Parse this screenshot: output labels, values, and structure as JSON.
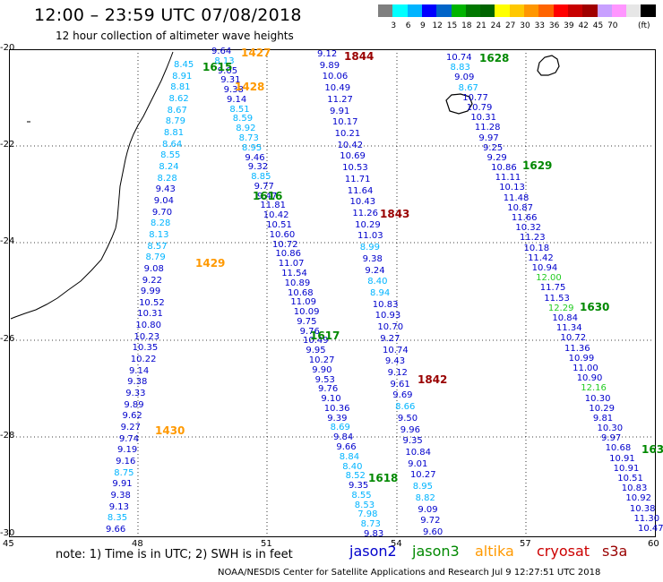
{
  "title": "12:00 – 23:59 UTC 07/08/2018",
  "subtitle": "12 hour collection of altimeter wave heights",
  "colorbar": {
    "colors": [
      "#7f7f7f",
      "#00ffff",
      "#00b4ff",
      "#0000ff",
      "#0064c8",
      "#00b400",
      "#007800",
      "#006400",
      "#ffff00",
      "#ffc800",
      "#ff9600",
      "#ff6400",
      "#ff0000",
      "#c80000",
      "#a00000",
      "#c8a0ff",
      "#ff96ff",
      "#e6e6e6",
      "#000000"
    ],
    "labels": [
      "3",
      "6",
      "9",
      "12",
      "15",
      "18",
      "21",
      "24",
      "27",
      "30",
      "33",
      "36",
      "39",
      "42",
      "45",
      "70"
    ],
    "unit": "(ft)"
  },
  "axes": {
    "lat_labels": [
      "-20",
      "-22",
      "-24",
      "-26",
      "-28",
      "-30"
    ],
    "lon_labels": [
      "45",
      "48",
      "51",
      "54",
      "57",
      "60"
    ]
  },
  "legend": {
    "jason2": {
      "label": "jason2",
      "color": "#0000cc"
    },
    "jason3": {
      "label": "jason3",
      "color": "#008800"
    },
    "altika": {
      "label": "altika",
      "color": "#ff9900"
    },
    "cryosat": {
      "label": "cryosat",
      "color": "#cc0000"
    },
    "s3a": {
      "label": "s3a",
      "color": "#990000"
    }
  },
  "note": "note:  1) Time is in UTC;  2) SWH is in feet",
  "footer": "NOAA/NESDIS Center for Satellite Applications and Research    Jul  9  12:27:51  UTC  2018",
  "passes": [
    {
      "t": "1427",
      "c": "#ff9900"
    },
    {
      "t": "1428",
      "c": "#ff9900"
    },
    {
      "t": "1429",
      "c": "#ff9900"
    },
    {
      "t": "1430",
      "c": "#ff9900"
    },
    {
      "t": "1615",
      "c": "#008800"
    },
    {
      "t": "1616",
      "c": "#008800"
    },
    {
      "t": "1617",
      "c": "#008800"
    },
    {
      "t": "1618",
      "c": "#008800"
    },
    {
      "t": "1628",
      "c": "#008800"
    },
    {
      "t": "1629",
      "c": "#008800"
    },
    {
      "t": "1630",
      "c": "#008800"
    },
    {
      "t": "163",
      "c": "#008800"
    },
    {
      "t": "1842",
      "c": "#990000"
    },
    {
      "t": "1843",
      "c": "#990000"
    },
    {
      "t": "1844",
      "c": "#990000"
    }
  ],
  "tracks": {
    "altika": [
      "8.45",
      "8.91",
      "8.81",
      "8.62",
      "8.67",
      "8.79",
      "8.81",
      "8.64",
      "8.55",
      "8.24",
      "8.28",
      "9.43",
      "9.04",
      "9.70",
      "8.28",
      "8.13",
      "8.57",
      "8.79",
      "9.08",
      "9.22",
      "9.99",
      "10.52",
      "10.31",
      "10.80",
      "10.23",
      "10.35",
      "10.22",
      "9.14",
      "9.38",
      "9.33",
      "9.89",
      "9.62",
      "9.27",
      "9.74",
      "9.19",
      "9.16",
      "8.75",
      "9.91",
      "9.38",
      "9.13",
      "8.35",
      "9.66"
    ],
    "jason3a": [
      "9.64",
      "8.13",
      "9.05",
      "9.31",
      "9.38",
      "9.14",
      "8.51",
      "8.59",
      "8.92",
      "8.73",
      "8.95",
      "9.46",
      "9.32",
      "8.85",
      "9.77",
      "9.47",
      "11.81",
      "10.42",
      "10.51",
      "10.60",
      "10.72",
      "10.86",
      "11.07",
      "11.54",
      "10.89",
      "10.68",
      "11.09",
      "10.09",
      "9.75",
      "9.76",
      "10.49",
      "9.95",
      "10.27",
      "9.90",
      "9.53",
      "9.76",
      "9.10",
      "10.36",
      "9.39",
      "8.69",
      "9.84",
      "9.66",
      "8.84",
      "8.40",
      "8.52",
      "9.35",
      "8.55",
      "8.53",
      "7.98",
      "8.73",
      "9.83"
    ],
    "s3a": [
      "9.12",
      "9.89",
      "10.06",
      "10.49",
      "11.27",
      "9.91",
      "10.17",
      "10.21",
      "10.42",
      "10.69",
      "10.53",
      "11.71",
      "11.64",
      "10.43",
      "11.26",
      "10.29",
      "11.03",
      "8.99",
      "9.38",
      "9.24",
      "8.40",
      "8.94",
      "10.83",
      "10.93",
      "10.70",
      "9.27",
      "10.74",
      "9.43",
      "9.12",
      "9.61",
      "9.69",
      "8.66",
      "9.50",
      "9.96",
      "9.35",
      "10.84",
      "9.01",
      "10.27",
      "8.95",
      "8.82",
      "9.09",
      "9.72",
      "9.60"
    ],
    "jason3b": [
      "10.74",
      "8.83",
      "9.09",
      "8.67",
      "10.77",
      "10.79",
      "10.31",
      "11.28",
      "9.97",
      "9.25",
      "9.29",
      "10.86",
      "11.11",
      "10.13",
      "11.48",
      "10.87",
      "11.66",
      "10.32",
      "11.23",
      "10.18",
      "11.42",
      "10.94",
      "12.00",
      "11.75",
      "11.53",
      "12.29",
      "10.84",
      "11.34",
      "10.72",
      "11.36",
      "10.99",
      "11.00",
      "10.90",
      "12.16",
      "10.30",
      "10.29",
      "9.81",
      "10.30",
      "9.97",
      "10.68",
      "10.91",
      "10.91",
      "10.51",
      "10.83",
      "10.92",
      "10.38",
      "11.30",
      "10.47"
    ]
  }
}
